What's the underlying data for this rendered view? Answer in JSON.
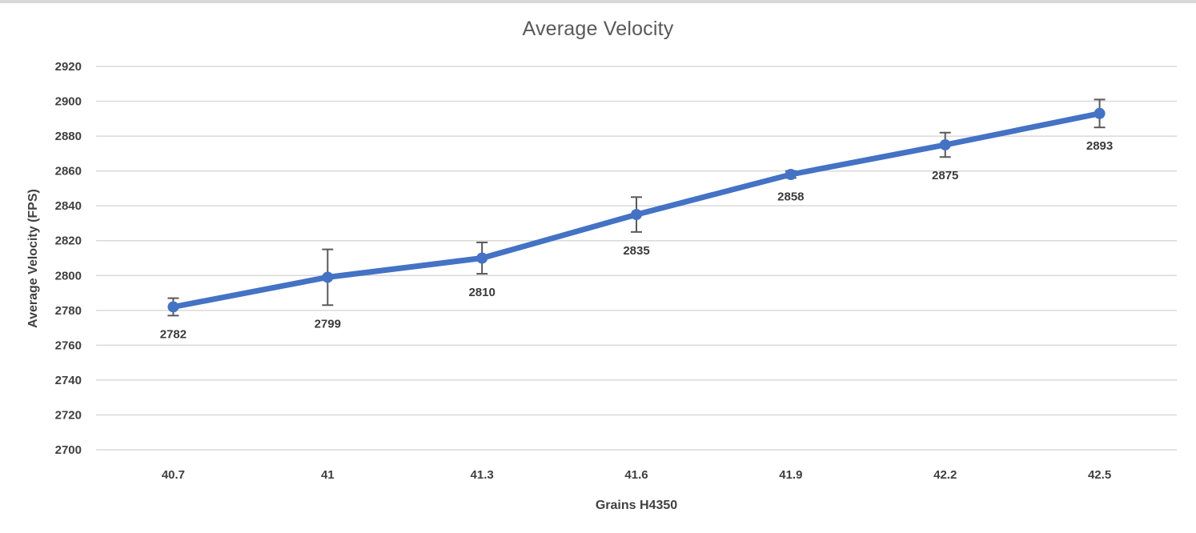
{
  "chart_data": {
    "type": "line",
    "title": "Average Velocity",
    "xlabel": "Grains H4350",
    "ylabel": "Average Velocity (FPS)",
    "categories": [
      "40.7",
      "41",
      "41.3",
      "41.6",
      "41.9",
      "42.2",
      "42.5"
    ],
    "series": [
      {
        "name": "Average Velocity",
        "values": [
          2782,
          2799,
          2810,
          2835,
          2858,
          2875,
          2893
        ],
        "error_bars": [
          5,
          16,
          9,
          10,
          2,
          7,
          8
        ],
        "data_labels": [
          "2782",
          "2799",
          "2810",
          "2835",
          "2858",
          "2875",
          "2893"
        ]
      }
    ],
    "ylim": [
      2700,
      2920
    ],
    "yticks": [
      2700,
      2720,
      2740,
      2760,
      2780,
      2800,
      2820,
      2840,
      2860,
      2880,
      2900,
      2920
    ],
    "grid": "horizontal",
    "legend": "none",
    "colors": {
      "line": "#4472C4",
      "marker": "#4472C4",
      "error_bar": "#595959",
      "gridline": "#D9D9D9",
      "title_text": "#595959",
      "label_text": "#404040",
      "top_border": "#D8D8D8"
    }
  }
}
